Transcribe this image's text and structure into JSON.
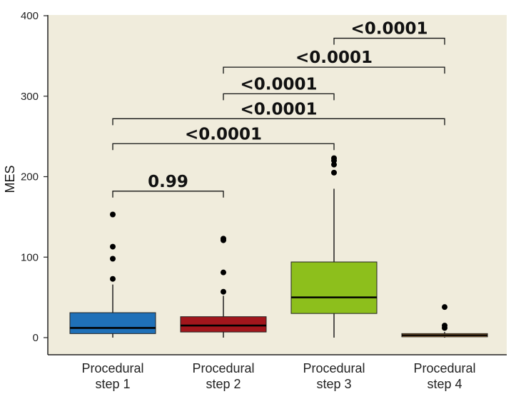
{
  "chart_data": {
    "type": "box",
    "title": "",
    "xlabel": "",
    "ylabel": "MES",
    "ylim": [
      0,
      400
    ],
    "yticks": [
      "0",
      "100",
      "200",
      "300",
      "400"
    ],
    "grid": false,
    "background": "#f0ecdc",
    "categories": [
      "Procedural\nstep 1",
      "Procedural\nstep 2",
      "Procedural\nstep 3",
      "Procedural\nstep 4"
    ],
    "boxes": [
      {
        "q1": 5,
        "median": 12,
        "q3": 31,
        "whisker_low": 0,
        "whisker_high": 66,
        "outliers": [
          73,
          98,
          113,
          153
        ],
        "color": "#1f70b8"
      },
      {
        "q1": 7,
        "median": 15,
        "q3": 26,
        "whisker_low": 0,
        "whisker_high": 52,
        "outliers": [
          57,
          81,
          121,
          123
        ],
        "color": "#a2161c"
      },
      {
        "q1": 30,
        "median": 50,
        "q3": 94,
        "whisker_low": 0,
        "whisker_high": 185,
        "outliers": [
          205,
          215,
          220,
          223
        ],
        "color": "#8dbf1c"
      },
      {
        "q1": 1,
        "median": 3,
        "q3": 5,
        "whisker_low": 0,
        "whisker_high": 7,
        "outliers": [
          12,
          15,
          38
        ],
        "color": "#f2a04a"
      }
    ],
    "comparisons": [
      {
        "from": 0,
        "to": 1,
        "label": "0.99",
        "y": 182
      },
      {
        "from": 0,
        "to": 2,
        "label": "<0.0001",
        "y": 241
      },
      {
        "from": 0,
        "to": 3,
        "label": "<0.0001",
        "y": 272
      },
      {
        "from": 1,
        "to": 2,
        "label": "<0.0001",
        "y": 303
      },
      {
        "from": 1,
        "to": 3,
        "label": "<0.0001",
        "y": 336
      },
      {
        "from": 2,
        "to": 3,
        "label": "<0.0001",
        "y": 372
      }
    ]
  }
}
